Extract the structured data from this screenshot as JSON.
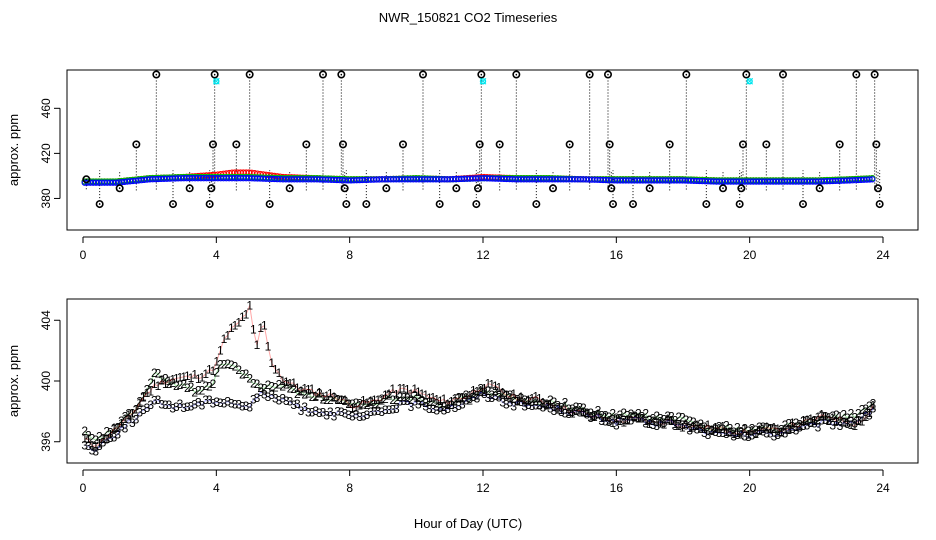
{
  "title": "NWR_150821  CO2 Timeseries",
  "xlabel": "Hour of Day (UTC)",
  "colors": {
    "series1": "#ff0000",
    "series2": "#00c000",
    "series3": "#0000ff",
    "spike": "#000000",
    "flag": "#00e5ee"
  },
  "chart_data": [
    {
      "type": "scatter",
      "panel": "top",
      "ylabel": "approx. ppm",
      "xlim": [
        0,
        24
      ],
      "ylim": [
        352,
        494
      ],
      "xticks": [
        0,
        4,
        8,
        12,
        16,
        20,
        24
      ],
      "yticks": [
        380,
        420,
        460
      ],
      "tick_labels_x": [
        "0",
        "4",
        "8",
        "12",
        "16",
        "20",
        "24"
      ],
      "tick_labels_y": [
        "380",
        "420",
        "460"
      ],
      "baseline_series": [
        {
          "name": "red",
          "x": [
            0,
            1,
            2,
            3,
            4,
            4.5,
            5,
            6,
            7,
            8,
            9,
            10,
            11,
            12,
            13,
            14,
            15,
            16,
            17,
            18,
            19,
            20,
            21,
            22,
            23,
            23.7
          ],
          "y": [
            395,
            395,
            398,
            399,
            401,
            403,
            403,
            399,
            398,
            397,
            397,
            398,
            397,
            399,
            398,
            398,
            397,
            397,
            397,
            397,
            396,
            396,
            396,
            396,
            397,
            398
          ]
        },
        {
          "name": "green",
          "x": [
            0,
            1,
            2,
            3,
            4,
            5,
            6,
            7,
            8,
            9,
            10,
            11,
            12,
            13,
            14,
            15,
            16,
            17,
            18,
            19,
            20,
            21,
            22,
            23,
            23.7
          ],
          "y": [
            395,
            395,
            398,
            399,
            399,
            399,
            398,
            398,
            397,
            397,
            398,
            397,
            398,
            398,
            398,
            397,
            397,
            397,
            397,
            396,
            396,
            396,
            396,
            397,
            398
          ]
        },
        {
          "name": "blue",
          "x": [
            0,
            1,
            2,
            3,
            4,
            5,
            6,
            7,
            8,
            9,
            10,
            11,
            12,
            13,
            14,
            15,
            16,
            17,
            18,
            19,
            20,
            21,
            22,
            23,
            23.7
          ],
          "y": [
            394,
            394,
            397,
            398,
            398,
            398,
            397,
            397,
            396,
            397,
            397,
            397,
            398,
            397,
            397,
            397,
            396,
            396,
            396,
            395,
            395,
            395,
            395,
            396,
            397
          ]
        }
      ],
      "spikes": [
        {
          "x": 0.1,
          "y": 397
        },
        {
          "x": 0.5,
          "y": 375
        },
        {
          "x": 1.1,
          "y": 389
        },
        {
          "x": 1.6,
          "y": 428
        },
        {
          "x": 2.2,
          "y": 490
        },
        {
          "x": 2.7,
          "y": 375
        },
        {
          "x": 3.2,
          "y": 389
        },
        {
          "x": 3.8,
          "y": 375
        },
        {
          "x": 3.85,
          "y": 389
        },
        {
          "x": 3.9,
          "y": 428
        },
        {
          "x": 3.95,
          "y": 490
        },
        {
          "x": 4.6,
          "y": 428
        },
        {
          "x": 5.0,
          "y": 490
        },
        {
          "x": 5.6,
          "y": 375
        },
        {
          "x": 6.2,
          "y": 389
        },
        {
          "x": 6.7,
          "y": 428
        },
        {
          "x": 7.2,
          "y": 490
        },
        {
          "x": 7.75,
          "y": 490
        },
        {
          "x": 7.8,
          "y": 428
        },
        {
          "x": 7.85,
          "y": 389
        },
        {
          "x": 7.9,
          "y": 375
        },
        {
          "x": 8.5,
          "y": 375
        },
        {
          "x": 9.1,
          "y": 389
        },
        {
          "x": 9.6,
          "y": 428
        },
        {
          "x": 10.2,
          "y": 490
        },
        {
          "x": 10.7,
          "y": 375
        },
        {
          "x": 11.2,
          "y": 389
        },
        {
          "x": 11.8,
          "y": 375
        },
        {
          "x": 11.85,
          "y": 389
        },
        {
          "x": 11.9,
          "y": 428
        },
        {
          "x": 11.95,
          "y": 490
        },
        {
          "x": 12.5,
          "y": 428
        },
        {
          "x": 13.0,
          "y": 490
        },
        {
          "x": 13.6,
          "y": 375
        },
        {
          "x": 14.1,
          "y": 389
        },
        {
          "x": 14.6,
          "y": 428
        },
        {
          "x": 15.2,
          "y": 490
        },
        {
          "x": 15.75,
          "y": 490
        },
        {
          "x": 15.8,
          "y": 428
        },
        {
          "x": 15.85,
          "y": 389
        },
        {
          "x": 15.9,
          "y": 375
        },
        {
          "x": 16.5,
          "y": 375
        },
        {
          "x": 17.0,
          "y": 389
        },
        {
          "x": 17.6,
          "y": 428
        },
        {
          "x": 18.1,
          "y": 490
        },
        {
          "x": 18.7,
          "y": 375
        },
        {
          "x": 19.2,
          "y": 389
        },
        {
          "x": 19.7,
          "y": 375
        },
        {
          "x": 19.75,
          "y": 389
        },
        {
          "x": 19.8,
          "y": 428
        },
        {
          "x": 19.9,
          "y": 490
        },
        {
          "x": 20.5,
          "y": 428
        },
        {
          "x": 21.0,
          "y": 490
        },
        {
          "x": 21.6,
          "y": 375
        },
        {
          "x": 22.1,
          "y": 389
        },
        {
          "x": 22.7,
          "y": 428
        },
        {
          "x": 23.2,
          "y": 490
        },
        {
          "x": 23.75,
          "y": 490
        },
        {
          "x": 23.8,
          "y": 428
        },
        {
          "x": 23.85,
          "y": 389
        },
        {
          "x": 23.9,
          "y": 375
        }
      ],
      "flags": [
        {
          "x": 4.0,
          "y": 484
        },
        {
          "x": 12.0,
          "y": 484
        },
        {
          "x": 20.0,
          "y": 484
        }
      ]
    },
    {
      "type": "line",
      "panel": "bottom",
      "ylabel": "approx. ppm",
      "xlim": [
        0,
        24
      ],
      "ylim": [
        394.6,
        405.4
      ],
      "xticks": [
        0,
        4,
        8,
        12,
        16,
        20,
        24
      ],
      "yticks": [
        396,
        400,
        404
      ],
      "tick_labels_x": [
        "0",
        "4",
        "8",
        "12",
        "16",
        "20",
        "24"
      ],
      "tick_labels_y": [
        "396",
        "400",
        "404"
      ],
      "series": [
        {
          "name": "1",
          "marker": "1",
          "x": [
            0.0,
            0.3,
            0.6,
            1.0,
            1.4,
            1.8,
            2.2,
            2.6,
            3.0,
            3.4,
            3.8,
            4.0,
            4.2,
            4.4,
            4.6,
            4.8,
            5.0,
            5.2,
            5.4,
            5.6,
            5.8,
            6.0,
            6.4,
            6.8,
            7.2,
            7.6,
            8.0,
            8.4,
            8.8,
            9.2,
            9.6,
            10.0,
            10.4,
            10.8,
            11.2,
            11.6,
            12.0,
            12.4,
            12.8,
            13.2,
            13.6,
            14.0,
            14.4,
            14.8,
            15.2,
            15.6,
            16.0,
            16.4,
            16.8,
            17.2,
            17.6,
            18.0,
            18.4,
            18.8,
            19.2,
            19.6,
            20.0,
            20.4,
            20.8,
            21.2,
            21.6,
            22.0,
            22.4,
            22.8,
            23.2,
            23.6,
            23.8
          ],
          "y": [
            396.2,
            395.8,
            396.1,
            396.9,
            397.6,
            398.9,
            399.8,
            400.1,
            400.2,
            400.3,
            400.6,
            401.1,
            402.5,
            403.3,
            403.6,
            404.2,
            404.8,
            402.0,
            404.2,
            401.5,
            400.8,
            400.1,
            399.6,
            399.3,
            399.1,
            399.0,
            398.4,
            398.5,
            398.7,
            399.2,
            399.4,
            399.3,
            398.9,
            398.6,
            398.8,
            399.1,
            399.7,
            399.5,
            399.0,
            398.8,
            398.8,
            398.5,
            398.2,
            398.0,
            397.7,
            397.6,
            397.3,
            397.5,
            397.4,
            397.2,
            397.4,
            397.1,
            397.0,
            396.9,
            396.8,
            396.7,
            396.6,
            396.8,
            396.7,
            397.0,
            397.2,
            397.5,
            397.7,
            397.4,
            397.2,
            397.9,
            398.9
          ]
        },
        {
          "name": "2",
          "marker": "2",
          "x": [
            0.0,
            0.3,
            0.6,
            1.0,
            1.4,
            1.8,
            2.2,
            2.6,
            3.0,
            3.4,
            3.8,
            4.0,
            4.2,
            4.4,
            4.6,
            4.8,
            5.0,
            5.2,
            5.4,
            5.6,
            5.8,
            6.0,
            6.4,
            6.8,
            7.2,
            7.6,
            8.0,
            8.4,
            8.8,
            9.2,
            9.6,
            10.0,
            10.4,
            10.8,
            11.2,
            11.6,
            12.0,
            12.4,
            12.8,
            13.2,
            13.6,
            14.0,
            14.4,
            14.8,
            15.2,
            15.6,
            16.0,
            16.4,
            16.8,
            17.2,
            17.6,
            18.0,
            18.4,
            18.8,
            19.2,
            19.6,
            20.0,
            20.4,
            20.8,
            21.2,
            21.6,
            22.0,
            22.4,
            22.8,
            23.2,
            23.6,
            23.8
          ],
          "y": [
            396.6,
            396.0,
            396.3,
            397.0,
            397.7,
            398.9,
            400.6,
            399.8,
            399.6,
            399.4,
            399.7,
            400.3,
            401.3,
            401.1,
            400.9,
            400.4,
            400.1,
            399.8,
            399.6,
            399.5,
            399.8,
            399.7,
            399.3,
            399.2,
            398.9,
            398.8,
            398.4,
            398.3,
            398.6,
            398.9,
            399.0,
            398.9,
            398.7,
            398.5,
            398.7,
            398.9,
            399.4,
            399.2,
            398.9,
            398.7,
            398.6,
            398.6,
            398.4,
            398.2,
            398.0,
            397.8,
            397.6,
            397.8,
            397.7,
            397.5,
            397.6,
            397.4,
            397.2,
            397.0,
            396.9,
            396.8,
            396.8,
            396.9,
            396.8,
            397.1,
            397.2,
            397.4,
            397.6,
            397.6,
            397.8,
            398.2,
            398.9
          ]
        },
        {
          "name": "3",
          "marker": "3",
          "x": [
            0.0,
            0.3,
            0.6,
            1.0,
            1.4,
            1.8,
            2.2,
            2.6,
            3.0,
            3.4,
            3.8,
            4.0,
            4.2,
            4.4,
            4.6,
            4.8,
            5.0,
            5.2,
            5.4,
            5.6,
            5.8,
            6.0,
            6.4,
            6.8,
            7.2,
            7.6,
            8.0,
            8.4,
            8.8,
            9.2,
            9.6,
            10.0,
            10.4,
            10.8,
            11.2,
            11.6,
            12.0,
            12.4,
            12.8,
            13.2,
            13.6,
            14.0,
            14.4,
            14.8,
            15.2,
            15.6,
            16.0,
            16.4,
            16.8,
            17.2,
            17.6,
            18.0,
            18.4,
            18.8,
            19.2,
            19.6,
            20.0,
            20.4,
            20.8,
            21.2,
            21.6,
            22.0,
            22.4,
            22.8,
            23.2,
            23.6,
            23.8
          ],
          "y": [
            396.0,
            395.4,
            395.9,
            396.6,
            397.3,
            398.0,
            398.6,
            398.4,
            398.3,
            398.5,
            398.6,
            398.8,
            398.6,
            398.7,
            398.5,
            398.4,
            398.3,
            398.9,
            399.3,
            399.0,
            398.6,
            398.9,
            398.3,
            398.1,
            398.0,
            397.8,
            397.7,
            397.6,
            397.9,
            398.2,
            398.5,
            398.5,
            398.3,
            398.2,
            398.4,
            398.7,
            399.2,
            398.9,
            398.6,
            398.4,
            398.4,
            398.3,
            398.1,
            397.9,
            397.7,
            397.5,
            397.3,
            397.5,
            397.3,
            397.2,
            397.3,
            397.0,
            396.8,
            396.6,
            396.4,
            396.5,
            396.4,
            396.6,
            396.5,
            396.8,
            396.9,
            397.1,
            397.3,
            397.2,
            397.4,
            397.9,
            398.6
          ]
        }
      ]
    }
  ]
}
